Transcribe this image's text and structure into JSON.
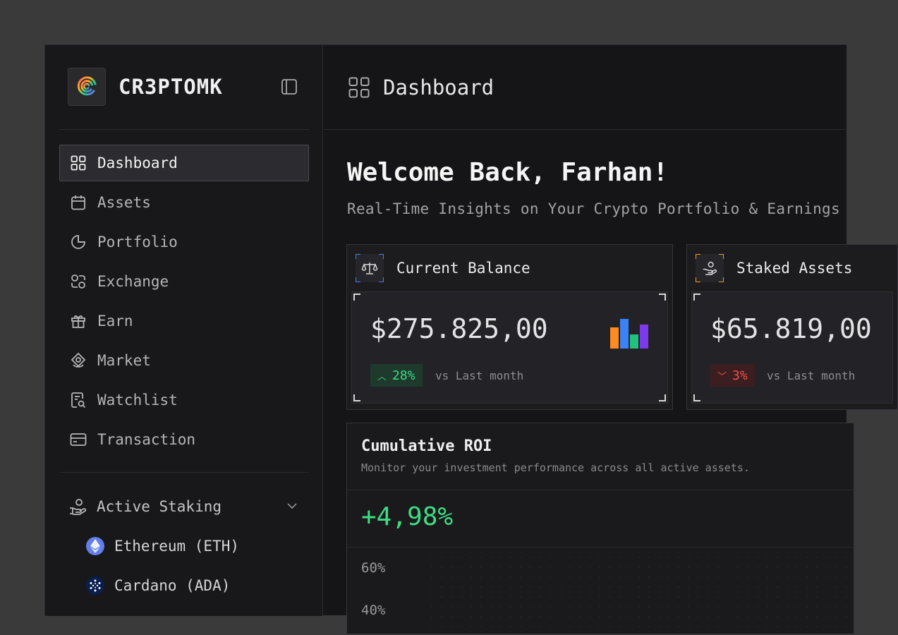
{
  "brand": {
    "name": "CR3PTOMK"
  },
  "nav": {
    "items": [
      {
        "label": "Dashboard",
        "icon": "grid-icon",
        "active": true
      },
      {
        "label": "Assets",
        "icon": "calendar-icon"
      },
      {
        "label": "Portfolio",
        "icon": "pie-chart-icon"
      },
      {
        "label": "Exchange",
        "icon": "exchange-icon"
      },
      {
        "label": "Earn",
        "icon": "gift-icon"
      },
      {
        "label": "Market",
        "icon": "market-icon"
      },
      {
        "label": "Watchlist",
        "icon": "watchlist-icon"
      },
      {
        "label": "Transaction",
        "icon": "card-icon"
      }
    ]
  },
  "staking": {
    "label": "Active Staking",
    "items": [
      {
        "label": "Ethereum (ETH)",
        "icon": "ethereum-icon",
        "color": "#627eea"
      },
      {
        "label": "Cardano (ADA)",
        "icon": "cardano-icon",
        "color": "#0a1f4d"
      }
    ]
  },
  "header": {
    "title": "Dashboard"
  },
  "welcome": {
    "title": "Welcome Back, Farhan!",
    "subtitle": "Real-Time Insights on Your Crypto Portfolio & Earnings"
  },
  "cards": [
    {
      "title": "Current Balance",
      "amount": "$275.825,00",
      "change": "28%",
      "direction": "up",
      "compare": "vs Last month",
      "accent": "#3b82f6"
    },
    {
      "title": "Staked Assets",
      "amount": "$65.819,00",
      "change": "3%",
      "direction": "down",
      "compare": "vs Last month",
      "accent": "#f59e0b"
    }
  ],
  "roi": {
    "title": "Cumulative ROI",
    "description": "Monitor your investment performance across all active assets.",
    "value": "+4,98%"
  },
  "chart_data": {
    "type": "bar",
    "ylabel": "",
    "y_ticks": [
      "60%",
      "40%"
    ],
    "series": [],
    "colors": {
      "up": "#3ddc84",
      "down": "#e53935"
    }
  }
}
